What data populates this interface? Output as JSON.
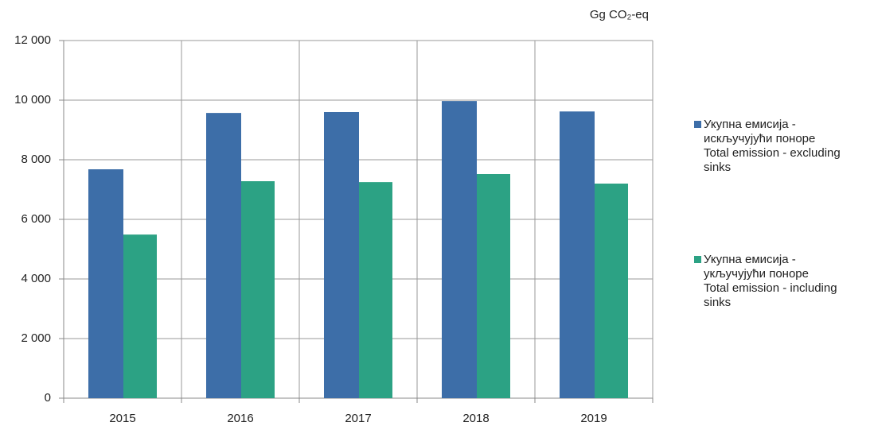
{
  "chart_data": {
    "type": "bar",
    "unit_label": "Gg CO₂-eq",
    "categories": [
      "2015",
      "2016",
      "2017",
      "2018",
      "2019"
    ],
    "series": [
      {
        "name": "Укупна емисија - искључујући поноре\nTotal emission - excluding sinks",
        "color": "#3d6ea8",
        "values": [
          7680,
          9570,
          9600,
          9970,
          9620
        ]
      },
      {
        "name": "Укупна емисија - укључујући поноре\nTotal emission - including sinks",
        "color": "#2ca284",
        "values": [
          5490,
          7280,
          7250,
          7520,
          7200
        ]
      }
    ],
    "ylim": [
      0,
      12000
    ],
    "yticks": [
      0,
      {
        "value": 2000,
        "label": "2 000"
      },
      {
        "value": 4000,
        "label": "4 000"
      },
      {
        "value": 6000,
        "label": "6 000"
      },
      {
        "value": 8000,
        "label": "8 000"
      },
      {
        "value": 10000,
        "label": "10 000"
      },
      {
        "value": 12000,
        "label": "12 000"
      }
    ],
    "grid": true,
    "legend": "right"
  }
}
